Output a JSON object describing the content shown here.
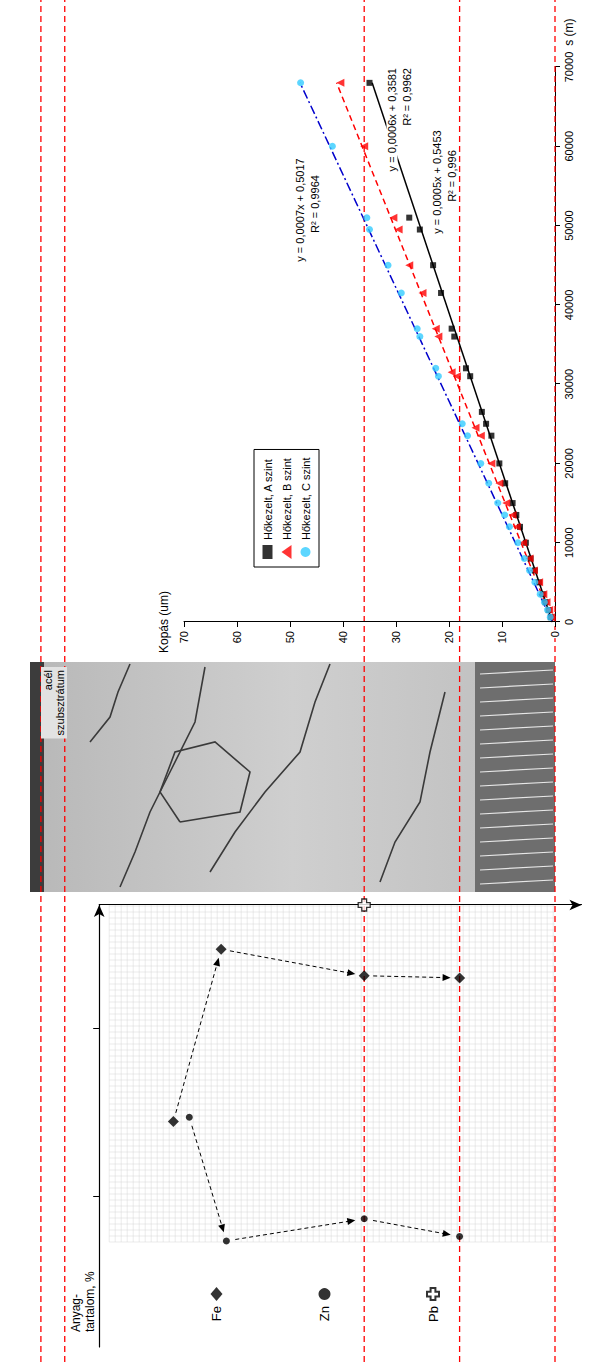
{
  "chart_data": [
    {
      "type": "scatter",
      "xlabel": "Anyag-tartalom, %",
      "xlim": [
        0,
        100
      ],
      "xticks": [
        28,
        66
      ],
      "ylim": [
        -5,
        86
      ],
      "tick_labels": false,
      "grid": true,
      "legend": "left",
      "series": [
        {
          "name": "Fe",
          "color": "#000000",
          "marker": "diamond",
          "line_style": "dashed-arrow",
          "x": [
            49,
            10,
            16,
            16.5
          ],
          "values": [
            72,
            63,
            36,
            18
          ]
        },
        {
          "name": "Zn",
          "color": "#000000",
          "marker": "circle",
          "line_style": "dashed-arrow",
          "x": [
            48,
            76,
            71,
            75
          ],
          "values": [
            69,
            62,
            36,
            18
          ]
        },
        {
          "name": "Pb",
          "color": "#000000",
          "marker": "cross",
          "x": [
            0
          ],
          "values": [
            36
          ]
        }
      ]
    },
    {
      "type": "scatter",
      "xlabel": "s (m)",
      "ylabel": "Kopás (um)",
      "xlim": [
        0,
        70000
      ],
      "xticks": [
        0,
        10000,
        20000,
        30000,
        40000,
        50000,
        60000,
        70000
      ],
      "ylim": [
        0,
        70
      ],
      "yticks": [
        0,
        10,
        20,
        30,
        40,
        50,
        60,
        70
      ],
      "grid": false,
      "legend": "upper left",
      "series": [
        {
          "name": "Hőkezelt, A szint",
          "color": "#000000",
          "marker": "square",
          "x": [
            600,
            1500,
            2500,
            3500,
            5000,
            6500,
            8000,
            10000,
            12000,
            13500,
            15000,
            17500,
            20000,
            23500,
            25000,
            26500,
            31000,
            32000,
            36000,
            37000,
            41500,
            45000,
            49500,
            51000,
            60000,
            68000
          ],
          "values": [
            0.8,
            1.2,
            1.8,
            2.3,
            3.0,
            3.8,
            4.6,
            5.5,
            6.6,
            7.3,
            8.0,
            9.4,
            10.5,
            12.0,
            13.0,
            13.8,
            16.0,
            16.8,
            19.0,
            19.5,
            21.5,
            23.0,
            25.5,
            27.5,
            30.5,
            35.0
          ],
          "trend": {
            "x": [
              0,
              68000
            ],
            "values": [
              0.5,
              34.5
            ],
            "color": "#000000",
            "line_style": "solid",
            "equation": "y = 0,0005x + 0,5453",
            "r2": "R² = 0,996"
          }
        },
        {
          "name": "Hőkezelt, B szint",
          "color": "#ff0000",
          "marker": "triangle",
          "x": [
            600,
            1500,
            2500,
            3500,
            5000,
            6500,
            8000,
            10000,
            12000,
            13500,
            15000,
            17500,
            20000,
            23500,
            24500,
            31000,
            31500,
            36000,
            37000,
            41500,
            45000,
            49500,
            51000,
            60000,
            68000
          ],
          "values": [
            0.7,
            1.1,
            1.6,
            2.2,
            3.0,
            4.0,
            4.8,
            6.0,
            7.2,
            8.0,
            9.2,
            10.5,
            12.0,
            14.0,
            15.0,
            18.5,
            19.5,
            22.0,
            22.5,
            25.0,
            27.5,
            29.5,
            30.5,
            36.0,
            40.5
          ],
          "trend": {
            "x": [
              0,
              68000
            ],
            "values": [
              0.4,
              41.2
            ],
            "color": "#ff0000",
            "line_style": "dashed",
            "equation": "y = 0,0006x + 0,3581",
            "r2": "R² = 0,9962"
          }
        },
        {
          "name": "Hőkezelt, C szint",
          "color": "#33ccff",
          "marker": "circle",
          "x": [
            600,
            1500,
            2500,
            3500,
            5000,
            6500,
            8000,
            10000,
            12000,
            13500,
            15000,
            17500,
            20000,
            23500,
            25000,
            31000,
            32000,
            36000,
            37000,
            41500,
            45000,
            49500,
            51000,
            60000,
            68000
          ],
          "values": [
            0.9,
            1.4,
            2.0,
            2.8,
            3.8,
            4.8,
            5.8,
            7.0,
            8.6,
            9.5,
            10.8,
            12.5,
            14.0,
            16.5,
            17.5,
            22.0,
            22.5,
            25.5,
            26.0,
            29.0,
            31.5,
            35.0,
            35.5,
            42.0,
            48.0
          ],
          "trend": {
            "x": [
              0,
              68000
            ],
            "values": [
              0.5,
              48.1
            ],
            "color": "#0000cc",
            "line_style": "dashdot",
            "equation": "y = 0,0007x + 0,5017",
            "r2": "R² = 0,9964"
          }
        }
      ]
    }
  ],
  "image": {
    "label": "acél szubsztrátum"
  },
  "reference_lines": {
    "values": [
      0,
      18,
      36,
      92.5,
      97
    ],
    "color": "#ff0000",
    "line_style": "dashed"
  }
}
